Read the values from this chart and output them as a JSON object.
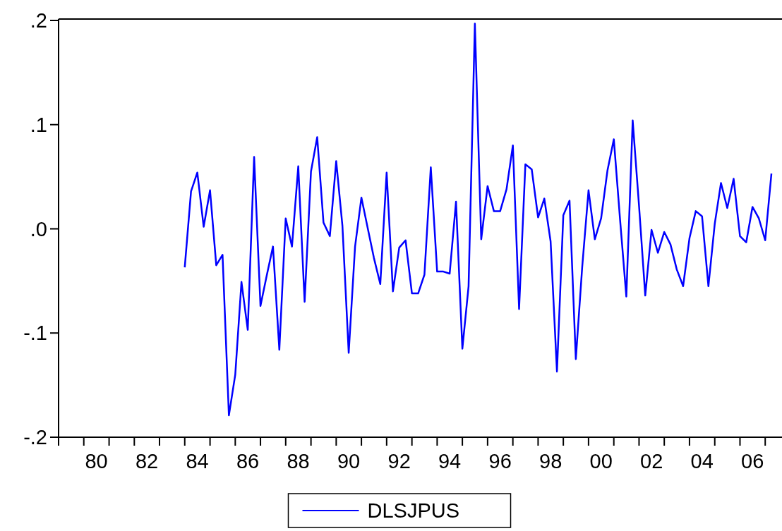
{
  "chart_data": {
    "type": "line",
    "x": [
      "1984-01",
      "1984-04",
      "1984-07",
      "1984-10",
      "1985-01",
      "1985-04",
      "1985-07",
      "1985-10",
      "1986-01",
      "1986-04",
      "1986-07",
      "1986-10",
      "1987-01",
      "1987-04",
      "1987-07",
      "1987-10",
      "1988-01",
      "1988-04",
      "1988-07",
      "1988-10",
      "1989-01",
      "1989-04",
      "1989-07",
      "1989-10",
      "1990-01",
      "1990-04",
      "1990-07",
      "1990-10",
      "1991-01",
      "1991-04",
      "1991-07",
      "1991-10",
      "1992-01",
      "1992-04",
      "1992-07",
      "1992-10",
      "1993-01",
      "1993-04",
      "1993-07",
      "1993-10",
      "1994-01",
      "1994-04",
      "1994-07",
      "1994-10",
      "1995-01",
      "1995-04",
      "1995-07",
      "1995-10",
      "1996-01",
      "1996-04",
      "1996-07",
      "1996-10",
      "1997-01",
      "1997-04",
      "1997-07",
      "1997-10",
      "1998-01",
      "1998-04",
      "1998-07",
      "1998-10",
      "1999-01",
      "1999-04",
      "1999-07",
      "1999-10",
      "2000-01",
      "2000-04",
      "2000-07",
      "2000-10",
      "2001-01",
      "2001-04",
      "2001-07",
      "2001-10",
      "2002-01",
      "2002-04",
      "2002-07",
      "2002-10",
      "2003-01",
      "2003-04",
      "2003-07",
      "2003-10",
      "2004-01",
      "2004-04",
      "2004-07",
      "2004-10",
      "2005-01",
      "2005-04",
      "2005-07",
      "2005-10",
      "2006-01",
      "2006-04",
      "2006-07",
      "2006-10",
      "2007-01",
      "2007-04"
    ],
    "series": [
      {
        "name": "DLSJPUS",
        "color": "#0000ff",
        "values": [
          -0.037,
          0.036,
          0.054,
          0.002,
          0.037,
          -0.035,
          -0.025,
          -0.179,
          -0.14,
          -0.051,
          -0.097,
          0.069,
          -0.074,
          -0.045,
          -0.017,
          -0.116,
          0.01,
          -0.017,
          0.06,
          -0.07,
          0.055,
          0.088,
          0.006,
          -0.007,
          0.065,
          0.003,
          -0.119,
          -0.017,
          0.03,
          0.001,
          -0.028,
          -0.053,
          0.054,
          -0.06,
          -0.018,
          -0.011,
          -0.062,
          -0.062,
          -0.044,
          0.059,
          -0.041,
          -0.041,
          -0.043,
          0.026,
          -0.115,
          -0.055,
          0.197,
          -0.01,
          0.041,
          0.017,
          0.017,
          0.038,
          0.08,
          -0.077,
          0.062,
          0.057,
          0.011,
          0.029,
          -0.012,
          -0.137,
          0.013,
          0.027,
          -0.125,
          -0.037,
          0.037,
          -0.01,
          0.01,
          0.056,
          0.086,
          0.009,
          -0.065,
          0.104,
          0.022,
          -0.064,
          -0.001,
          -0.023,
          -0.003,
          -0.015,
          -0.039,
          -0.055,
          -0.009,
          0.017,
          0.012,
          -0.055,
          0.005,
          0.044,
          0.02,
          0.048,
          -0.007,
          -0.013,
          0.021,
          0.01,
          -0.011,
          0.053
        ]
      }
    ],
    "xlim": [
      "1979",
      "2007-09"
    ],
    "xticks": [
      {
        "value": "1979",
        "label": null
      },
      {
        "value": "1980",
        "label": null
      },
      {
        "value": "1980-07",
        "label": "80"
      },
      {
        "value": "1981",
        "label": null
      },
      {
        "value": "1982",
        "label": null
      },
      {
        "value": "1982-07",
        "label": "82"
      },
      {
        "value": "1983",
        "label": null
      },
      {
        "value": "1984",
        "label": null
      },
      {
        "value": "1984-07",
        "label": "84"
      },
      {
        "value": "1985",
        "label": null
      },
      {
        "value": "1986",
        "label": null
      },
      {
        "value": "1986-07",
        "label": "86"
      },
      {
        "value": "1987",
        "label": null
      },
      {
        "value": "1988",
        "label": null
      },
      {
        "value": "1988-07",
        "label": "88"
      },
      {
        "value": "1989",
        "label": null
      },
      {
        "value": "1990",
        "label": null
      },
      {
        "value": "1990-07",
        "label": "90"
      },
      {
        "value": "1991",
        "label": null
      },
      {
        "value": "1992",
        "label": null
      },
      {
        "value": "1992-07",
        "label": "92"
      },
      {
        "value": "1993",
        "label": null
      },
      {
        "value": "1994",
        "label": null
      },
      {
        "value": "1994-07",
        "label": "94"
      },
      {
        "value": "1995",
        "label": null
      },
      {
        "value": "1996",
        "label": null
      },
      {
        "value": "1996-07",
        "label": "96"
      },
      {
        "value": "1997",
        "label": null
      },
      {
        "value": "1998",
        "label": null
      },
      {
        "value": "1998-07",
        "label": "98"
      },
      {
        "value": "1999",
        "label": null
      },
      {
        "value": "2000",
        "label": null
      },
      {
        "value": "2000-07",
        "label": "00"
      },
      {
        "value": "2001",
        "label": null
      },
      {
        "value": "2002",
        "label": null
      },
      {
        "value": "2002-07",
        "label": "02"
      },
      {
        "value": "2003",
        "label": null
      },
      {
        "value": "2004",
        "label": null
      },
      {
        "value": "2004-07",
        "label": "04"
      },
      {
        "value": "2005",
        "label": null
      },
      {
        "value": "2006",
        "label": null
      },
      {
        "value": "2006-07",
        "label": "06"
      },
      {
        "value": "2007",
        "label": null
      }
    ],
    "ylim": [
      -0.2,
      0.2
    ],
    "yticks": [
      {
        "value": 0.2,
        "label": ".2"
      },
      {
        "value": 0.1,
        "label": ".1"
      },
      {
        "value": 0,
        "label": ".0"
      },
      {
        "value": -0.1,
        "label": "-.1"
      },
      {
        "value": -0.2,
        "label": "-.2"
      }
    ],
    "legend": "bottom"
  }
}
